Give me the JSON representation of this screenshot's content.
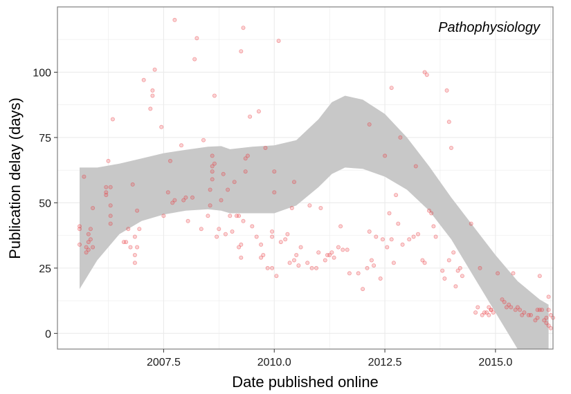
{
  "chart_data": {
    "type": "scatter",
    "annotation": "Pathophysiology",
    "xlabel": "Date published online",
    "ylabel": "Publication delay (days)",
    "xlim": [
      2005.1,
      2016.3
    ],
    "ylim": [
      -6,
      125
    ],
    "x_ticks": [
      2007.5,
      2010.0,
      2012.5,
      2015.0
    ],
    "x_tick_labels": [
      "2007.5",
      "2010.0",
      "2012.5",
      "2015.0"
    ],
    "y_ticks": [
      0,
      25,
      50,
      75,
      100
    ],
    "y_tick_labels": [
      "0",
      "25",
      "50",
      "75",
      "100"
    ],
    "grid": true,
    "legend": "none",
    "colors": {
      "points": "#e8383d",
      "smooth_band": "#c8c8c8",
      "panel_border": "#7f7f7f",
      "grid": "#ebebeb"
    },
    "series": [
      {
        "kind": "points",
        "points": [
          [
            2005.6,
            34
          ],
          [
            2005.6,
            40
          ],
          [
            2005.6,
            41
          ],
          [
            2005.7,
            60
          ],
          [
            2005.75,
            31
          ],
          [
            2005.75,
            33
          ],
          [
            2005.8,
            38
          ],
          [
            2005.8,
            35
          ],
          [
            2005.8,
            32
          ],
          [
            2005.85,
            40
          ],
          [
            2005.85,
            36
          ],
          [
            2005.9,
            48
          ],
          [
            2005.9,
            33
          ],
          [
            2006.2,
            53
          ],
          [
            2006.2,
            54
          ],
          [
            2006.2,
            56
          ],
          [
            2006.25,
            66
          ],
          [
            2006.3,
            42
          ],
          [
            2006.3,
            45
          ],
          [
            2006.3,
            49
          ],
          [
            2006.3,
            56
          ],
          [
            2006.35,
            82
          ],
          [
            2006.6,
            35
          ],
          [
            2006.65,
            35
          ],
          [
            2006.7,
            40
          ],
          [
            2006.75,
            33
          ],
          [
            2006.8,
            57
          ],
          [
            2006.85,
            30
          ],
          [
            2006.85,
            27
          ],
          [
            2006.85,
            37
          ],
          [
            2006.9,
            33
          ],
          [
            2006.9,
            47
          ],
          [
            2006.95,
            40
          ],
          [
            2007.05,
            97
          ],
          [
            2007.2,
            86
          ],
          [
            2007.25,
            93
          ],
          [
            2007.25,
            91
          ],
          [
            2007.3,
            101
          ],
          [
            2007.45,
            79
          ],
          [
            2007.5,
            45
          ],
          [
            2007.6,
            54
          ],
          [
            2007.65,
            66
          ],
          [
            2007.7,
            50
          ],
          [
            2007.75,
            51
          ],
          [
            2007.75,
            120
          ],
          [
            2007.9,
            72
          ],
          [
            2007.95,
            51
          ],
          [
            2008.0,
            52
          ],
          [
            2008.05,
            43
          ],
          [
            2008.15,
            52
          ],
          [
            2008.2,
            105
          ],
          [
            2008.25,
            113
          ],
          [
            2008.35,
            40
          ],
          [
            2008.4,
            74
          ],
          [
            2008.5,
            45
          ],
          [
            2008.55,
            49
          ],
          [
            2008.55,
            55
          ],
          [
            2008.6,
            59
          ],
          [
            2008.6,
            62
          ],
          [
            2008.6,
            64
          ],
          [
            2008.6,
            68
          ],
          [
            2008.65,
            65
          ],
          [
            2008.65,
            91
          ],
          [
            2008.7,
            37
          ],
          [
            2008.75,
            40
          ],
          [
            2008.8,
            51
          ],
          [
            2008.85,
            61
          ],
          [
            2008.9,
            38
          ],
          [
            2008.95,
            55
          ],
          [
            2009.0,
            45
          ],
          [
            2009.05,
            39
          ],
          [
            2009.1,
            58
          ],
          [
            2009.15,
            45
          ],
          [
            2009.2,
            45
          ],
          [
            2009.2,
            33
          ],
          [
            2009.25,
            34
          ],
          [
            2009.25,
            29
          ],
          [
            2009.25,
            108
          ],
          [
            2009.3,
            117
          ],
          [
            2009.3,
            43
          ],
          [
            2009.35,
            62
          ],
          [
            2009.35,
            67
          ],
          [
            2009.4,
            68
          ],
          [
            2009.45,
            83
          ],
          [
            2009.5,
            41
          ],
          [
            2009.6,
            37
          ],
          [
            2009.65,
            85
          ],
          [
            2009.7,
            29
          ],
          [
            2009.7,
            34
          ],
          [
            2009.75,
            30
          ],
          [
            2009.8,
            71
          ],
          [
            2009.85,
            25
          ],
          [
            2009.95,
            25
          ],
          [
            2009.95,
            37
          ],
          [
            2009.95,
            39
          ],
          [
            2010.0,
            54
          ],
          [
            2010.0,
            62
          ],
          [
            2010.05,
            22
          ],
          [
            2010.1,
            112
          ],
          [
            2010.15,
            35
          ],
          [
            2010.25,
            36
          ],
          [
            2010.3,
            38
          ],
          [
            2010.35,
            27
          ],
          [
            2010.4,
            48
          ],
          [
            2010.45,
            58
          ],
          [
            2010.45,
            28
          ],
          [
            2010.5,
            30
          ],
          [
            2010.55,
            26
          ],
          [
            2010.6,
            33
          ],
          [
            2010.75,
            27
          ],
          [
            2010.8,
            49
          ],
          [
            2010.85,
            25
          ],
          [
            2010.95,
            25
          ],
          [
            2011.0,
            31
          ],
          [
            2011.05,
            48
          ],
          [
            2011.15,
            28
          ],
          [
            2011.2,
            30
          ],
          [
            2011.25,
            30
          ],
          [
            2011.3,
            31
          ],
          [
            2011.35,
            29
          ],
          [
            2011.45,
            33
          ],
          [
            2011.5,
            41
          ],
          [
            2011.55,
            32
          ],
          [
            2011.65,
            32
          ],
          [
            2011.7,
            23
          ],
          [
            2011.9,
            23
          ],
          [
            2012.0,
            17
          ],
          [
            2012.1,
            25
          ],
          [
            2012.15,
            39
          ],
          [
            2012.15,
            80
          ],
          [
            2012.2,
            28
          ],
          [
            2012.25,
            26
          ],
          [
            2012.3,
            37
          ],
          [
            2012.4,
            21
          ],
          [
            2012.45,
            36
          ],
          [
            2012.5,
            68
          ],
          [
            2012.55,
            33
          ],
          [
            2012.6,
            46
          ],
          [
            2012.65,
            94
          ],
          [
            2012.65,
            36
          ],
          [
            2012.7,
            27
          ],
          [
            2012.75,
            53
          ],
          [
            2012.8,
            42
          ],
          [
            2012.85,
            75
          ],
          [
            2012.9,
            34
          ],
          [
            2013.05,
            36
          ],
          [
            2013.15,
            37
          ],
          [
            2013.2,
            64
          ],
          [
            2013.25,
            38
          ],
          [
            2013.35,
            28
          ],
          [
            2013.4,
            100
          ],
          [
            2013.4,
            27
          ],
          [
            2013.45,
            99
          ],
          [
            2013.5,
            47
          ],
          [
            2013.55,
            46
          ],
          [
            2013.6,
            41
          ],
          [
            2013.65,
            37
          ],
          [
            2013.8,
            24
          ],
          [
            2013.85,
            21
          ],
          [
            2013.9,
            93
          ],
          [
            2013.95,
            81
          ],
          [
            2013.95,
            28
          ],
          [
            2014.0,
            71
          ],
          [
            2014.05,
            31
          ],
          [
            2014.1,
            18
          ],
          [
            2014.15,
            24
          ],
          [
            2014.2,
            25
          ],
          [
            2014.25,
            22
          ],
          [
            2014.45,
            42
          ],
          [
            2014.55,
            8
          ],
          [
            2014.6,
            10
          ],
          [
            2014.65,
            25
          ],
          [
            2014.7,
            7
          ],
          [
            2014.75,
            8
          ],
          [
            2014.8,
            8
          ],
          [
            2014.85,
            10
          ],
          [
            2014.85,
            7
          ],
          [
            2014.9,
            9
          ],
          [
            2014.9,
            9
          ],
          [
            2014.95,
            8
          ],
          [
            2015.05,
            23
          ],
          [
            2015.15,
            13
          ],
          [
            2015.2,
            12
          ],
          [
            2015.25,
            10
          ],
          [
            2015.3,
            11
          ],
          [
            2015.35,
            10
          ],
          [
            2015.4,
            23
          ],
          [
            2015.45,
            9
          ],
          [
            2015.5,
            10
          ],
          [
            2015.55,
            9
          ],
          [
            2015.6,
            7
          ],
          [
            2015.65,
            8
          ],
          [
            2015.75,
            7
          ],
          [
            2015.8,
            7
          ],
          [
            2015.9,
            5
          ],
          [
            2015.95,
            6
          ],
          [
            2015.95,
            9
          ],
          [
            2016.0,
            22
          ],
          [
            2016.0,
            9
          ],
          [
            2016.05,
            9
          ],
          [
            2016.1,
            5
          ],
          [
            2016.15,
            4
          ],
          [
            2016.15,
            6
          ],
          [
            2016.2,
            3
          ],
          [
            2016.2,
            9
          ],
          [
            2016.2,
            14
          ],
          [
            2016.25,
            2
          ],
          [
            2016.25,
            7
          ],
          [
            2016.3,
            6
          ]
        ]
      },
      {
        "kind": "smooth_band",
        "x": [
          2005.6,
          2006.0,
          2006.5,
          2007.0,
          2007.5,
          2008.0,
          2008.5,
          2008.8,
          2009.0,
          2009.5,
          2010.0,
          2010.5,
          2011.0,
          2011.3,
          2011.6,
          2012.0,
          2012.5,
          2013.0,
          2013.5,
          2014.0,
          2014.5,
          2015.0,
          2015.5,
          2016.0,
          2016.2
        ],
        "upper": [
          63.5,
          63.5,
          65.0,
          67.0,
          69.0,
          70.3,
          71.5,
          71.7,
          70.5,
          71.5,
          72.0,
          74.0,
          82.0,
          88.5,
          91.0,
          89.5,
          84.0,
          75.0,
          64.0,
          52.0,
          41.0,
          30.0,
          20.0,
          13.0,
          11.0
        ],
        "lower": [
          17.0,
          28.0,
          38.0,
          43.0,
          45.5,
          47.0,
          47.5,
          47.0,
          46.0,
          46.0,
          46.0,
          49.0,
          56.0,
          61.0,
          63.5,
          63.0,
          60.0,
          55.0,
          47.0,
          36.0,
          22.0,
          8.0,
          -6.0,
          -6.0,
          -6.0
        ]
      }
    ]
  }
}
